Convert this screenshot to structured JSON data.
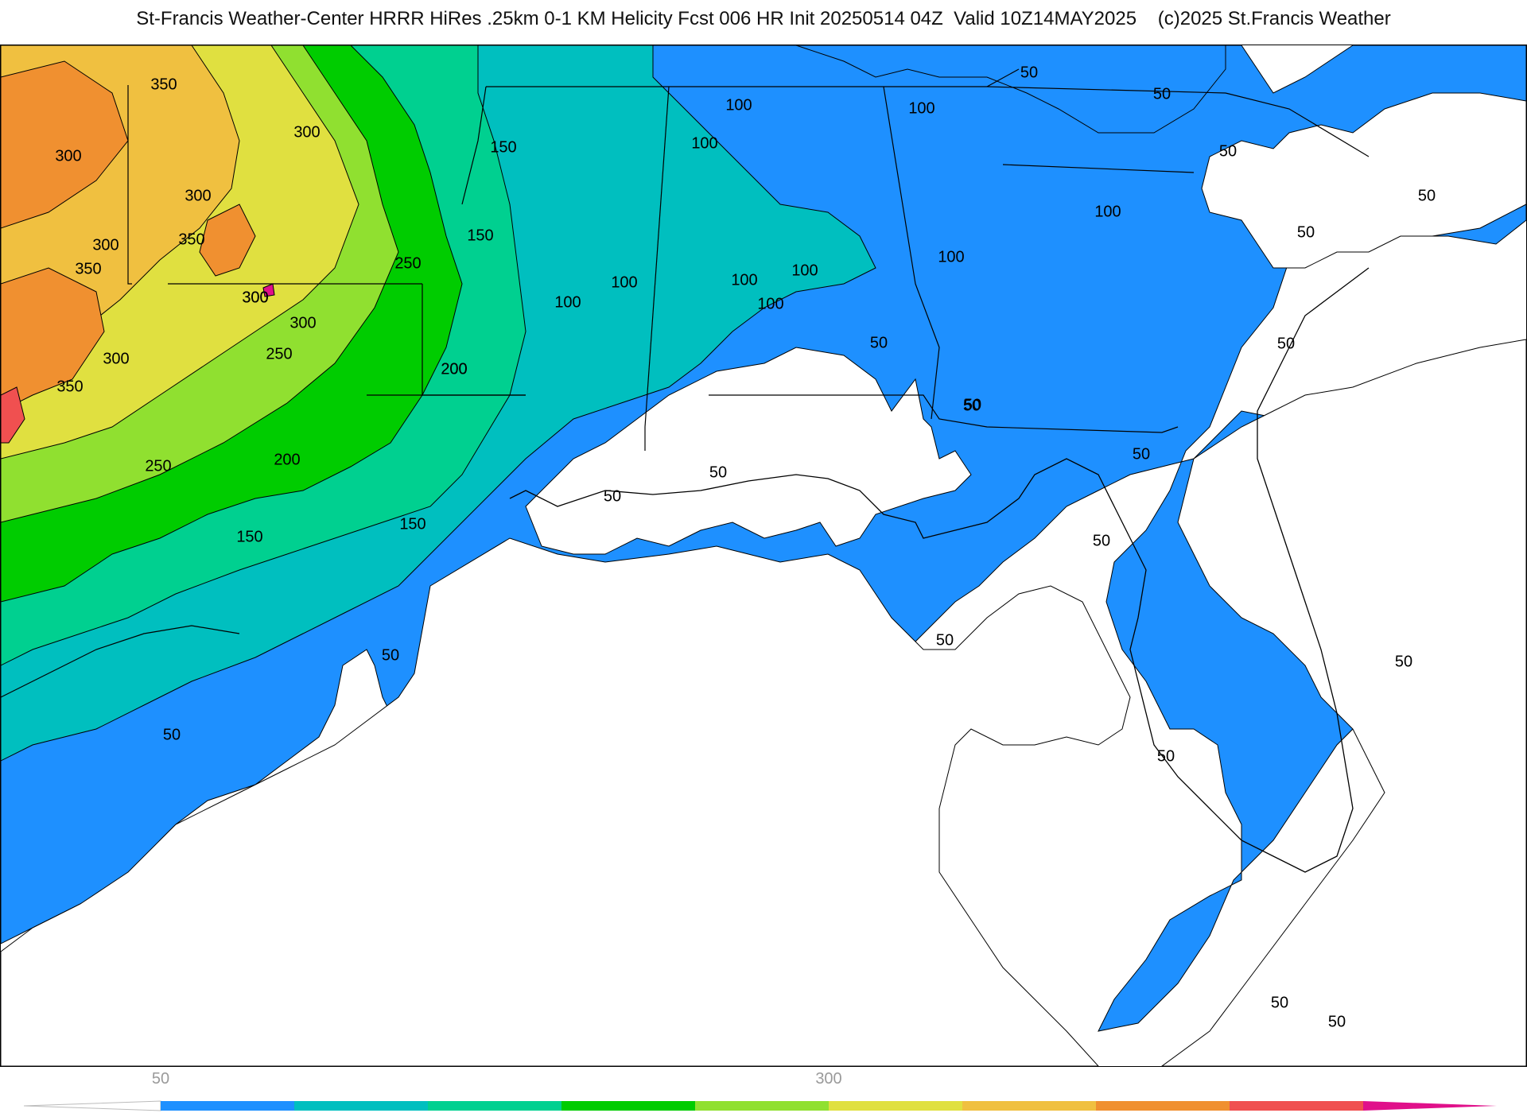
{
  "header": {
    "title": "St-Francis Weather-Center HRRR HiRes .25km 0-1 KM Helicity Fcst 006 HR Init 20250514 04Z  Valid 10Z14MAY2025    (c)2025 St.Francis Weather"
  },
  "map": {
    "contour_labels": [
      {
        "text": "350"
      },
      {
        "text": "300"
      },
      {
        "text": "300"
      },
      {
        "text": "300"
      },
      {
        "text": "300"
      },
      {
        "text": "350"
      },
      {
        "text": "350"
      },
      {
        "text": "300"
      },
      {
        "text": "300"
      },
      {
        "text": "300"
      },
      {
        "text": "250"
      },
      {
        "text": "300"
      },
      {
        "text": "350"
      },
      {
        "text": "250"
      },
      {
        "text": "200"
      },
      {
        "text": "250"
      },
      {
        "text": "200"
      },
      {
        "text": "150"
      },
      {
        "text": "150"
      },
      {
        "text": "150"
      },
      {
        "text": "200"
      },
      {
        "text": "150"
      },
      {
        "text": "100"
      },
      {
        "text": "100"
      },
      {
        "text": "100"
      },
      {
        "text": "100"
      },
      {
        "text": "100"
      },
      {
        "text": "100"
      },
      {
        "text": "100"
      },
      {
        "text": "100"
      },
      {
        "text": "100"
      },
      {
        "text": "100"
      },
      {
        "text": "50"
      },
      {
        "text": "50"
      },
      {
        "text": "50"
      },
      {
        "text": "50"
      },
      {
        "text": "50"
      },
      {
        "text": "50"
      },
      {
        "text": "50"
      },
      {
        "text": "50"
      },
      {
        "text": "50"
      },
      {
        "text": "50"
      },
      {
        "text": "50"
      },
      {
        "text": "50"
      },
      {
        "text": "50"
      },
      {
        "text": "50"
      },
      {
        "text": "50"
      },
      {
        "text": "50"
      },
      {
        "text": "50"
      },
      {
        "text": "50"
      },
      {
        "text": "50"
      },
      {
        "text": "50"
      }
    ]
  },
  "colorbar": {
    "tick_labels": [
      "50",
      "300"
    ],
    "colors": [
      "#1e90ff",
      "#00bfbf",
      "#00d090",
      "#00cc00",
      "#90e030",
      "#e0e040",
      "#f0c040",
      "#f09030",
      "#f05050",
      "#e0108a"
    ]
  }
}
